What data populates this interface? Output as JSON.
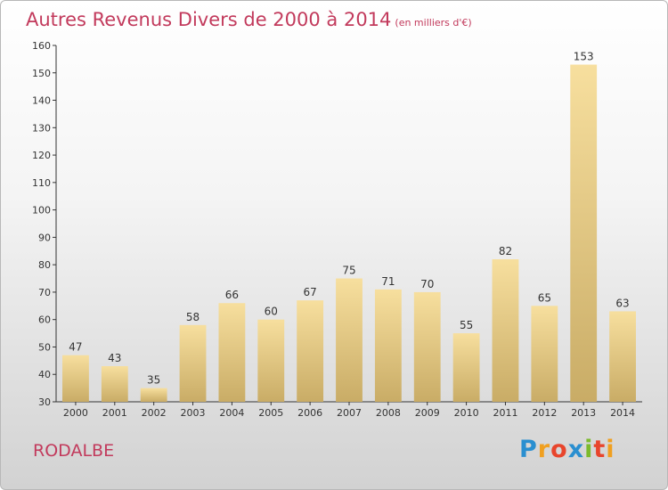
{
  "header": {
    "title": "Autres Revenus Divers de 2000 à 2014",
    "subtitle": "(en milliers d'€)"
  },
  "footer": {
    "location": "RODALBE",
    "logo_letters": [
      "P",
      "r",
      "o",
      "x",
      "i",
      "t",
      "i"
    ],
    "logo_colors": [
      "#2a8fd0",
      "#f0a020",
      "#e8452c",
      "#2a8fd0",
      "#7cba2c",
      "#e8452c",
      "#f0a020"
    ]
  },
  "chart_data": {
    "type": "bar",
    "title": "Autres Revenus Divers de 2000 à 2014",
    "subtitle": "(en milliers d'€)",
    "categories": [
      "2000",
      "2001",
      "2002",
      "2003",
      "2004",
      "2005",
      "2006",
      "2007",
      "2008",
      "2009",
      "2010",
      "2011",
      "2012",
      "2013",
      "2014"
    ],
    "values": [
      47,
      43,
      35,
      58,
      66,
      60,
      67,
      75,
      71,
      70,
      55,
      82,
      65,
      153,
      63
    ],
    "ylim": [
      30,
      160
    ],
    "yticks": [
      30,
      40,
      50,
      60,
      70,
      80,
      90,
      100,
      110,
      120,
      130,
      140,
      150,
      160
    ],
    "grid": false,
    "legend": "none",
    "colors": {
      "bar_top": "#f7df9e",
      "bar_bottom": "#c9ac66",
      "label": "#333333",
      "axis": "#333333"
    }
  }
}
